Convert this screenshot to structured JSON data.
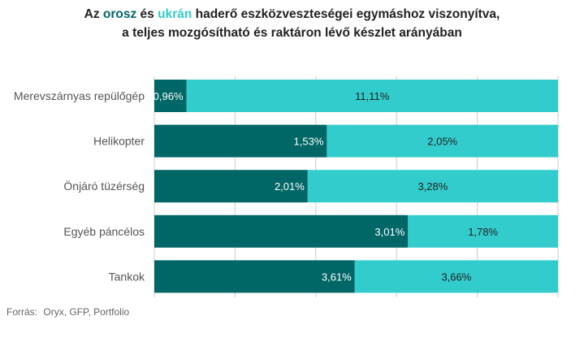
{
  "title": {
    "line1_prefix": "Az ",
    "line1_word_a": "orosz",
    "line1_mid": " és ",
    "line1_word_b": "ukrán",
    "line1_suffix": " haderő eszközveszteségei egymáshoz viszonyítva,",
    "line2": "a teljes mozgósítható és raktáron lévő készlet arányában"
  },
  "footer": {
    "label": "Forrás:",
    "sources": "Oryx, GFP, Portfolio"
  },
  "colors": {
    "series_a": "#006666",
    "series_b": "#33cccc",
    "axis_label": "#555555",
    "grid": "#cccccc"
  },
  "chart_data": {
    "type": "bar",
    "orientation": "horizontal",
    "stacked": true,
    "normalized": true,
    "categories": [
      "Merevszárnyas repülőgép",
      "Helikopter",
      "Önjáró tüzérség",
      "Egyéb páncélos",
      "Tankok"
    ],
    "series": [
      {
        "name": "orosz",
        "values": [
          0.96,
          1.53,
          2.01,
          3.01,
          3.61
        ],
        "labels": [
          "0,96%",
          "1,53%",
          "2,01%",
          "3,01%",
          "3,61%"
        ]
      },
      {
        "name": "ukrán",
        "values": [
          11.11,
          2.05,
          3.28,
          1.78,
          3.66
        ],
        "labels": [
          "11,11%",
          "2,05%",
          "3,28%",
          "1,78%",
          "3,66%"
        ]
      }
    ],
    "grid": true,
    "legend": "none"
  }
}
